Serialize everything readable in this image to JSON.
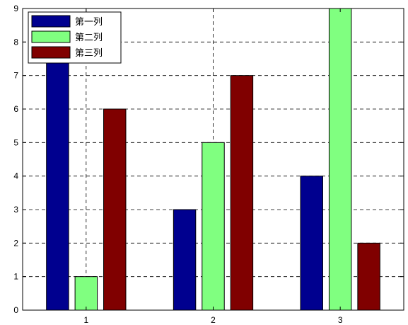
{
  "chart_data": {
    "type": "bar",
    "categories": [
      "1",
      "2",
      "3"
    ],
    "series": [
      {
        "name": "第一列",
        "values": [
          8,
          3,
          4
        ],
        "color": "#00008f"
      },
      {
        "name": "第二列",
        "values": [
          1,
          5,
          9
        ],
        "color": "#80ff80"
      },
      {
        "name": "第三列",
        "values": [
          6,
          7,
          2
        ],
        "color": "#800000"
      }
    ],
    "title": "",
    "xlabel": "",
    "ylabel": "",
    "ylim": [
      0,
      9
    ],
    "yticks": [
      "0",
      "1",
      "2",
      "3",
      "4",
      "5",
      "6",
      "7",
      "8",
      "9"
    ],
    "grid": true,
    "legend_position": "top-left"
  }
}
